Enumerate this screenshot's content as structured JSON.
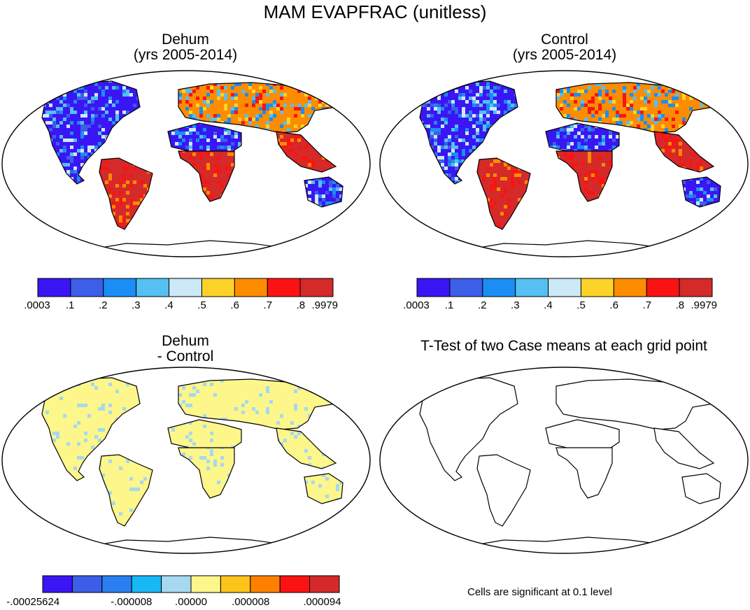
{
  "figure": {
    "title": "MAM EVAPFRAC (unitless)"
  },
  "panels": [
    {
      "id": "dehum",
      "title_line1": "Dehum",
      "title_line2": "(yrs 2005-2014)",
      "colorbar": {
        "colors": [
          "#3a16f5",
          "#3c5ee8",
          "#1a8ef5",
          "#55c0f2",
          "#cce9f7",
          "#fdd32a",
          "#fd8c00",
          "#fb1313",
          "#d42a2a"
        ],
        "labels": [
          ".0003",
          ".1",
          ".2",
          ".3",
          ".4",
          ".5",
          ".6",
          ".7",
          ".8",
          ".9979"
        ]
      }
    },
    {
      "id": "control",
      "title_line1": "Control",
      "title_line2": "(yrs 2005-2014)",
      "colorbar": {
        "colors": [
          "#3a16f5",
          "#3c5ee8",
          "#1a8ef5",
          "#55c0f2",
          "#cce9f7",
          "#fdd32a",
          "#fd8c00",
          "#fb1313",
          "#d42a2a"
        ],
        "labels": [
          ".0003",
          ".1",
          ".2",
          ".3",
          ".4",
          ".5",
          ".6",
          ".7",
          ".8",
          ".9979"
        ]
      }
    },
    {
      "id": "difference",
      "title_line1": "Dehum",
      "title_line2": "- Control",
      "colorbar": {
        "colors": [
          "#3a16f5",
          "#3c5ee8",
          "#2a7ef0",
          "#18b8f5",
          "#a6d8f0",
          "#fdf68a",
          "#fdc41a",
          "#fd8000",
          "#fb1313",
          "#d42a2a"
        ],
        "labels": [
          "-.00025624",
          "-.000008",
          ".00000",
          ".000008",
          ".000094"
        ]
      }
    },
    {
      "id": "ttest",
      "title_line1": "T-Test of two Case means at each grid point",
      "note": "Cells are significant at 0.1 level"
    }
  ],
  "region_values": {
    "dehum": {
      "na": "blue",
      "sa": "red",
      "africa_north": "blue",
      "africa_south": "red",
      "eurasia": "orange",
      "asia_south": "red",
      "australia": "blue"
    },
    "control": {
      "na": "blue",
      "sa": "red",
      "africa_north": "blue",
      "africa_south": "red",
      "eurasia": "orange",
      "asia_south": "red",
      "australia": "blue"
    },
    "difference": {
      "na": "yellow",
      "sa": "yellow",
      "africa_north": "yellow",
      "africa_south": "yellow",
      "eurasia": "yellow",
      "asia_south": "yellow",
      "australia": "yellow"
    },
    "ttest": {}
  }
}
